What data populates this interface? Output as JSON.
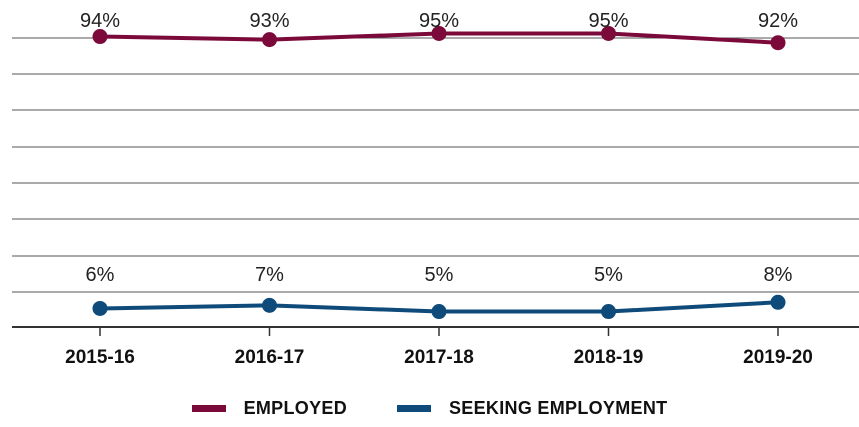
{
  "chart_data": {
    "type": "line",
    "categories": [
      "2015-16",
      "2016-17",
      "2017-18",
      "2018-19",
      "2019-20"
    ],
    "series": [
      {
        "name": "EMPLOYED",
        "color": "#7b0a3a",
        "values": [
          94,
          93,
          95,
          95,
          92
        ],
        "labels": [
          "94%",
          "93%",
          "95%",
          "95%",
          "92%"
        ]
      },
      {
        "name": "SEEKING EMPLOYMENT",
        "color": "#0e4a7a",
        "values": [
          6,
          7,
          5,
          5,
          8
        ],
        "labels": [
          "6%",
          "7%",
          "5%",
          "5%",
          "8%"
        ]
      }
    ],
    "ylim": [
      0,
      100
    ],
    "grid": true,
    "legend_position": "bottom"
  }
}
